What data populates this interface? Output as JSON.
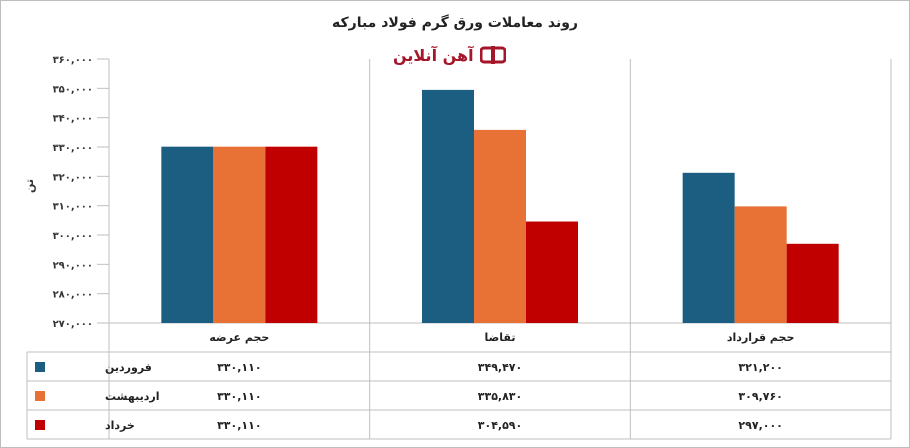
{
  "chart_data": {
    "type": "bar",
    "title": "روند معاملات ورق گرم فولاد مبارکه",
    "brand": {
      "text": "آهن آنلاین",
      "color": "#a5162a"
    },
    "ylabel": "تن",
    "ylim": [
      270000,
      360000
    ],
    "yticks": [
      "۲۷۰,۰۰۰",
      "۲۸۰,۰۰۰",
      "۲۹۰,۰۰۰",
      "۳۰۰,۰۰۰",
      "۳۱۰,۰۰۰",
      "۳۲۰,۰۰۰",
      "۳۳۰,۰۰۰",
      "۳۴۰,۰۰۰",
      "۳۵۰,۰۰۰",
      "۳۶۰,۰۰۰"
    ],
    "ytick_values": [
      270000,
      280000,
      290000,
      300000,
      310000,
      320000,
      330000,
      340000,
      350000,
      360000
    ],
    "categories": [
      "حجم عرضه",
      "تقاضا",
      "حجم قرارداد"
    ],
    "series": [
      {
        "name": "فروردین",
        "color": "#1b5e82",
        "values": [
          330110,
          349470,
          321200
        ],
        "labels": [
          "۳۳۰,۱۱۰",
          "۳۴۹,۴۷۰",
          "۳۲۱,۲۰۰"
        ]
      },
      {
        "name": "اردیبهشت",
        "color": "#e87136",
        "values": [
          330110,
          335830,
          309760
        ],
        "labels": [
          "۳۳۰,۱۱۰",
          "۳۳۵,۸۳۰",
          "۳۰۹,۷۶۰"
        ]
      },
      {
        "name": "خرداد",
        "color": "#c00000",
        "values": [
          330110,
          304590,
          297000
        ],
        "labels": [
          "۳۳۰,۱۱۰",
          "۳۰۴,۵۹۰",
          "۲۹۷,۰۰۰"
        ]
      }
    ],
    "legend": "data-table-left",
    "grid": false
  }
}
